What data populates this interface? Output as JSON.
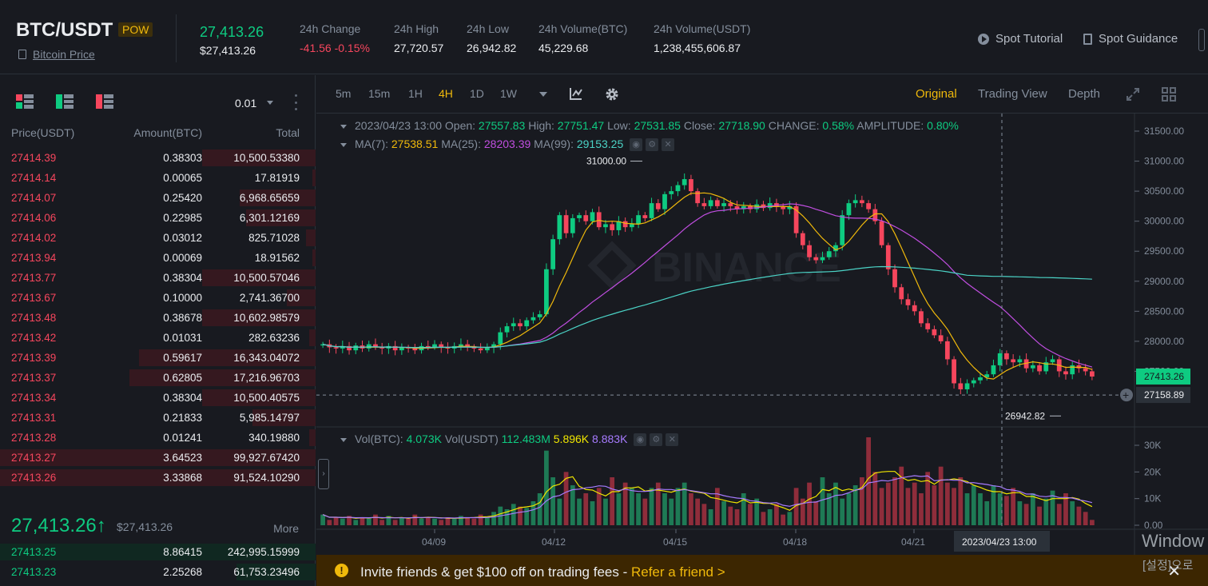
{
  "header": {
    "pair": "BTC/USDT",
    "tag": "POW",
    "coin_link": "Bitcoin Price",
    "last_price": "27,413.26",
    "last_price_fiat": "$27,413.26",
    "stats": [
      {
        "label": "24h Change",
        "value": "-41.56 -0.15%"
      },
      {
        "label": "24h High",
        "value": "27,720.57"
      },
      {
        "label": "24h Low",
        "value": "26,942.82"
      },
      {
        "label": "24h Volume(BTC)",
        "value": "45,229.68"
      },
      {
        "label": "24h Volume(USDT)",
        "value": "1,238,455,606.87"
      }
    ],
    "spot_tutorial": "Spot Tutorial",
    "spot_guidance": "Spot Guidance"
  },
  "orderbook": {
    "precision": "0.01",
    "col_price": "Price(USDT)",
    "col_amount": "Amount(BTC)",
    "col_total": "Total",
    "asks": [
      {
        "price": "27414.39",
        "amount": "0.38303",
        "total": "10,500.53380",
        "depth": 0.36
      },
      {
        "price": "27414.14",
        "amount": "0.00065",
        "total": "17.81919",
        "depth": 0.01
      },
      {
        "price": "27414.07",
        "amount": "0.25420",
        "total": "6,968.65659",
        "depth": 0.24
      },
      {
        "price": "27414.06",
        "amount": "0.22985",
        "total": "6,301.12169",
        "depth": 0.22
      },
      {
        "price": "27414.02",
        "amount": "0.03012",
        "total": "825.71028",
        "depth": 0.03
      },
      {
        "price": "27413.94",
        "amount": "0.00069",
        "total": "18.91562",
        "depth": 0.01
      },
      {
        "price": "27413.77",
        "amount": "0.38304",
        "total": "10,500.57046",
        "depth": 0.36
      },
      {
        "price": "27413.67",
        "amount": "0.10000",
        "total": "2,741.36700",
        "depth": 0.09
      },
      {
        "price": "27413.48",
        "amount": "0.38678",
        "total": "10,602.98579",
        "depth": 0.36
      },
      {
        "price": "27413.42",
        "amount": "0.01031",
        "total": "282.63236",
        "depth": 0.02
      },
      {
        "price": "27413.39",
        "amount": "0.59617",
        "total": "16,343.04072",
        "depth": 0.56
      },
      {
        "price": "27413.37",
        "amount": "0.62805",
        "total": "17,216.96703",
        "depth": 0.59
      },
      {
        "price": "27413.34",
        "amount": "0.38304",
        "total": "10,500.40575",
        "depth": 0.36
      },
      {
        "price": "27413.31",
        "amount": "0.21833",
        "total": "5,985.14797",
        "depth": 0.2
      },
      {
        "price": "27413.28",
        "amount": "0.01241",
        "total": "340.19880",
        "depth": 0.02
      },
      {
        "price": "27413.27",
        "amount": "3.64523",
        "total": "99,927.67420",
        "depth": 1.0
      },
      {
        "price": "27413.26",
        "amount": "3.33868",
        "total": "91,524.10290",
        "depth": 1.0
      }
    ],
    "mid_price": "27,413.26↑",
    "mid_fiat": "$27,413.26",
    "more": "More",
    "bids": [
      {
        "price": "27413.25",
        "amount": "8.86415",
        "total": "242,995.15999",
        "depth": 1.0
      },
      {
        "price": "27413.23",
        "amount": "2.25268",
        "total": "61,753.23496",
        "depth": 0.25
      }
    ]
  },
  "toolbar": {
    "intervals": [
      "5m",
      "15m",
      "1H",
      "4H",
      "1D",
      "1W"
    ],
    "active_interval": "4H",
    "views": [
      "Original",
      "Trading View",
      "Depth"
    ],
    "active_view": "Original"
  },
  "ohlc_legend": {
    "date": "2023/04/23 13:00",
    "open_label": "Open:",
    "open": "27557.83",
    "high_label": "High:",
    "high": "27751.47",
    "low_label": "Low:",
    "low": "27531.85",
    "close_label": "Close:",
    "close": "27718.90",
    "change_label": "CHANGE:",
    "change": "0.58%",
    "amp_label": "AMPLITUDE:",
    "amp": "0.80%"
  },
  "ma_legend": {
    "ma7_label": "MA(7):",
    "ma7": "27538.51",
    "ma25_label": "MA(25):",
    "ma25": "28203.39",
    "ma99_label": "MA(99):",
    "ma99": "29153.25"
  },
  "vol_legend": {
    "btc_label": "Vol(BTC):",
    "btc": "4.073K",
    "usdt_label": "Vol(USDT)",
    "usdt": "112.483M",
    "ma1": "5.896K",
    "ma2": "8.883K"
  },
  "colors": {
    "up": "#0ecb81",
    "down": "#f6465d",
    "ma7": "#f0b90b",
    "ma25": "#c04ee0",
    "ma99": "#4bd3c6",
    "accent": "#f0b90b"
  },
  "chart_data": {
    "type": "candlestick",
    "price_axis": {
      "min": 27000,
      "max": 31500,
      "ticks": [
        "31500.00",
        "31000.00",
        "30500.00",
        "30000.00",
        "29500.00",
        "29000.00",
        "28500.00",
        "28000.00",
        "27500.00"
      ]
    },
    "volume_axis": {
      "min": 0,
      "max": 30000,
      "ticks": [
        "30K",
        "20K",
        "10K",
        "0.00"
      ]
    },
    "x_ticks": [
      "04/09",
      "04/12",
      "04/15",
      "04/18",
      "04/21"
    ],
    "crosshair_date": "2023/04/23 13:00",
    "current_price_label": "27413.26",
    "cursor_price_label": "27158.89",
    "high_annotation": "31000.00",
    "low_annotation": "26942.82",
    "closes": [
      27950,
      27900,
      27880,
      27920,
      27850,
      27930,
      27880,
      27950,
      27900,
      27880,
      27920,
      27850,
      27900,
      27880,
      27850,
      27920,
      27900,
      27950,
      27900,
      27880,
      27920,
      27950,
      27900,
      27880,
      27850,
      27900,
      27950,
      28150,
      28250,
      28300,
      28250,
      28350,
      28400,
      28450,
      29200,
      29700,
      30100,
      29800,
      30050,
      30100,
      30000,
      30150,
      29900,
      29950,
      29850,
      30000,
      29900,
      29950,
      30100,
      30050,
      30300,
      30200,
      30450,
      30500,
      30600,
      30700,
      30500,
      30300,
      30250,
      30350,
      30250,
      30300,
      30250,
      30200,
      30250,
      30200,
      30280,
      30220,
      30300,
      30250,
      30200,
      30250,
      29800,
      29600,
      29400,
      29350,
      29400,
      29500,
      29600,
      30100,
      30300,
      30350,
      30300,
      30200,
      30000,
      29600,
      29200,
      28900,
      28700,
      28600,
      28500,
      28300,
      28200,
      28100,
      28000,
      27700,
      27300,
      27200,
      27300,
      27350,
      27400,
      27450,
      27600,
      27800,
      27700,
      27650,
      27700,
      27550,
      27600,
      27500,
      27650,
      27700,
      27500,
      27450,
      27600,
      27550,
      27500,
      27413
    ],
    "volumes": [
      4000,
      2000,
      3000,
      2500,
      3500,
      2000,
      3000,
      2500,
      4000,
      2000,
      3500,
      2000,
      3000,
      2500,
      4000,
      2500,
      3000,
      2500,
      2000,
      3000,
      2500,
      3500,
      3000,
      2500,
      4000,
      3000,
      5000,
      7000,
      6000,
      8000,
      7000,
      6500,
      9000,
      12000,
      28000,
      18000,
      10000,
      20000,
      15000,
      10000,
      12000,
      9000,
      14000,
      10000,
      18000,
      12000,
      16000,
      14000,
      12000,
      10000,
      14000,
      16000,
      12000,
      10000,
      14000,
      16000,
      12000,
      10000,
      8000,
      6000,
      14000,
      9000,
      7000,
      6000,
      12000,
      8000,
      10000,
      5000,
      6000,
      8000,
      4000,
      5000,
      14000,
      10000,
      16000,
      9000,
      18000,
      12000,
      16000,
      10000,
      12000,
      15000,
      18000,
      33000,
      20000,
      14000,
      16000,
      18000,
      22000,
      14000,
      16000,
      12000,
      20000,
      15000,
      22000,
      16000,
      14000,
      18000,
      12000,
      15000,
      12000,
      9000,
      15000,
      12000,
      11000,
      14000,
      9000,
      8000,
      12000,
      7000,
      10000,
      13000,
      8000,
      12000,
      9000,
      7000,
      5000,
      2000
    ]
  }
}
